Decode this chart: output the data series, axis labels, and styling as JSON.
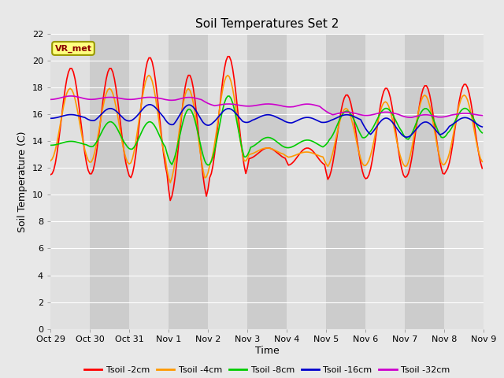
{
  "title": "Soil Temperatures Set 2",
  "xlabel": "Time",
  "ylabel": "Soil Temperature (C)",
  "ylim": [
    0,
    22
  ],
  "yticks": [
    0,
    2,
    4,
    6,
    8,
    10,
    12,
    14,
    16,
    18,
    20,
    22
  ],
  "xtick_labels": [
    "Oct 29",
    "Oct 30",
    "Oct 31",
    "Nov 1",
    "Nov 2",
    "Nov 3",
    "Nov 4",
    "Nov 5",
    "Nov 6",
    "Nov 7",
    "Nov 8",
    "Nov 9"
  ],
  "num_days": 11,
  "annotation_text": "VR_met",
  "series_colors": [
    "#ff0000",
    "#ff9900",
    "#00cc00",
    "#0000cc",
    "#cc00cc"
  ],
  "series_labels": [
    "Tsoil -2cm",
    "Tsoil -4cm",
    "Tsoil -8cm",
    "Tsoil -16cm",
    "Tsoil -32cm"
  ],
  "line_width": 1.2,
  "background_outer": "#e8e8e8",
  "background_inner": "#d8d8d8",
  "grid_color": "#ffffff",
  "title_fontsize": 11,
  "axis_fontsize": 9,
  "tick_fontsize": 8,
  "r_max": [
    19.5,
    19.5,
    20.3,
    19.0,
    20.4,
    13.5,
    13.5,
    17.5,
    18.0,
    18.2,
    18.3
  ],
  "r_min": [
    11.5,
    11.5,
    11.2,
    9.5,
    11.2,
    12.7,
    12.2,
    11.1,
    11.2,
    11.3,
    11.7
  ],
  "o_max": [
    18.0,
    18.0,
    19.0,
    18.0,
    19.0,
    13.5,
    13.2,
    16.5,
    17.0,
    17.5,
    17.5
  ],
  "o_min": [
    12.5,
    12.3,
    12.2,
    10.7,
    12.0,
    13.0,
    12.8,
    12.0,
    12.2,
    12.0,
    12.3
  ],
  "g_max": [
    14.0,
    15.5,
    15.5,
    16.5,
    17.5,
    14.3,
    14.1,
    16.3,
    16.5,
    16.5,
    16.5
  ],
  "g_min": [
    13.7,
    13.5,
    13.3,
    12.0,
    12.2,
    13.5,
    13.5,
    14.0,
    14.5,
    14.0,
    14.5
  ],
  "b_max": [
    16.0,
    16.5,
    16.8,
    16.8,
    16.5,
    16.0,
    15.8,
    16.0,
    15.8,
    15.5,
    15.8
  ],
  "b_min": [
    15.7,
    15.4,
    15.5,
    15.0,
    15.2,
    15.5,
    15.3,
    15.5,
    14.3,
    14.2,
    15.0
  ],
  "p_max": [
    17.4,
    17.3,
    17.3,
    17.3,
    16.8,
    16.8,
    16.8,
    16.2,
    16.2,
    16.0,
    16.1
  ],
  "p_min": [
    17.1,
    17.1,
    17.1,
    17.0,
    16.6,
    16.6,
    16.5,
    15.9,
    15.9,
    15.7,
    15.9
  ]
}
